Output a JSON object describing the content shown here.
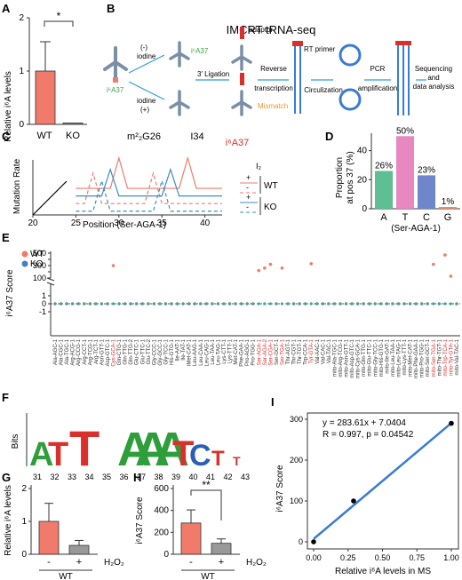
{
  "panels": {
    "A": {
      "label": "A",
      "ylabel": "Relative i⁶A levels",
      "star": "*"
    },
    "B": {
      "label": "B",
      "title": "IMCRT tRNA-seq",
      "minus": "(-)",
      "plus": "(+)",
      "iodine1": "iodine",
      "iodine2": "iodine",
      "i6a37_left": "i⁶A37",
      "i6a37_right": "i⁶A37",
      "adaptor": "adaptor",
      "rt_primer": "RT primer",
      "mismatch": "Mismatch",
      "ligation": "3′ Ligation",
      "rev1": "Reverse",
      "rev2": "transcription",
      "circ": "Circulization",
      "pcr1": "PCR",
      "pcr2": "amplification",
      "seq1": "Sequencing",
      "seq2": "and",
      "seq3": "data analysis"
    },
    "C": {
      "label": "C",
      "xlabel": "Position (Ser-AGA-1)",
      "ylabel": "Mutation Rate",
      "ann1": "m²₂G26",
      "ann2": "I34",
      "ann3": "i⁶A37",
      "legend_title": "I₂",
      "legend_plus": "+",
      "legend_minus": "-",
      "wt": "WT",
      "ko": "KO"
    },
    "D": {
      "label": "D",
      "ylabel1": "Proportion",
      "ylabel2": "at pos 37 (%)",
      "xlabel": "(Ser-AGA-1)"
    },
    "E": {
      "label": "E",
      "ylabel": "i⁶A37 Score",
      "legend_wt": "WT",
      "legend_ko": "KO"
    },
    "F": {
      "label": "F",
      "ylabel": "Bits"
    },
    "G": {
      "label": "G",
      "ylabel": "Relative i⁶A levels",
      "group": "WT",
      "h2o2": "H₂O₂"
    },
    "H": {
      "label": "H",
      "ylabel": "i⁶A37 Score",
      "group": "WT",
      "h2o2": "H₂O₂",
      "star": "**"
    },
    "I": {
      "label": "I",
      "eq": "y = 283.61x + 7.0404",
      "r": "R = 0.997, p = 0.04542",
      "xlabel": "Relative i⁶A levels in MS",
      "ylabel": "i⁶A37 Score"
    }
  },
  "colors": {
    "wt": "#f07b6b",
    "ko": "#999999",
    "blue": "#3a7bd5",
    "teal": "#2a9fd6",
    "green": "#5fbf94",
    "pink": "#e887c0",
    "slate": "#6f86c9",
    "orange": "#f08a5d"
  },
  "chart_data": [
    {
      "panel": "A",
      "type": "bar",
      "categories": [
        "WT",
        "KO"
      ],
      "values": [
        1.0,
        0.0
      ],
      "errors": [
        0.55,
        0.01
      ],
      "ylim": [
        0,
        2
      ],
      "yticks": [
        0,
        1,
        2
      ]
    },
    {
      "panel": "C",
      "type": "line",
      "xlabel": "Position (Ser-AGA-1)",
      "ylabel": "Mutation Rate",
      "xlim": [
        20,
        42
      ],
      "xticks": [
        20,
        25,
        30,
        35,
        40
      ],
      "series": [
        {
          "name": "WT +",
          "x": [
            25,
            26,
            27,
            28,
            29,
            30,
            31,
            32,
            33,
            34,
            35,
            36,
            37,
            38,
            39,
            40,
            41,
            42
          ],
          "y": [
            0.7,
            0.7,
            0.7,
            0.7,
            0.7,
            1.5,
            0.7,
            0.7,
            0.7,
            0.7,
            0.7,
            0.7,
            0.7,
            1.5,
            0.7,
            0.7,
            0.7,
            0.7
          ]
        },
        {
          "name": "WT -",
          "x": [
            25,
            26,
            27,
            28,
            29,
            30,
            31,
            32,
            33,
            34,
            35,
            36,
            37,
            38,
            39,
            40,
            41,
            42
          ],
          "y": [
            0.3,
            0.3,
            1.1,
            0.3,
            0.3,
            0.3,
            0.3,
            0.3,
            0.3,
            1.1,
            0.3,
            0.3,
            0.3,
            0.3,
            0.3,
            0.3,
            0.3,
            0.3
          ]
        },
        {
          "name": "KO +",
          "x": [
            25,
            26,
            27,
            28,
            29,
            30,
            31,
            32,
            33,
            34,
            35,
            36,
            37,
            38,
            39,
            40,
            41,
            42
          ],
          "y": [
            0.5,
            0.5,
            0.5,
            0.5,
            1.2,
            0.5,
            0.5,
            0.5,
            0.5,
            0.5,
            0.5,
            1.2,
            0.5,
            0.5,
            0.5,
            0.5,
            0.5,
            0.5
          ]
        },
        {
          "name": "KO -",
          "x": [
            25,
            26,
            27,
            28,
            29,
            30,
            31,
            32,
            33,
            34,
            35,
            36,
            37,
            38,
            39,
            40,
            41,
            42
          ],
          "y": [
            0.1,
            0.1,
            0.1,
            0.9,
            0.1,
            0.1,
            0.1,
            0.1,
            0.1,
            0.1,
            0.9,
            0.1,
            0.1,
            0.1,
            0.1,
            0.1,
            0.1,
            0.1
          ]
        }
      ]
    },
    {
      "panel": "D",
      "type": "bar",
      "categories": [
        "A",
        "T",
        "C",
        "G"
      ],
      "values": [
        26,
        50,
        23,
        1
      ],
      "labels": [
        "26%",
        "50%",
        "23%",
        "1%"
      ],
      "ylim": [
        0,
        50
      ],
      "yticks": [
        0,
        20,
        40
      ]
    },
    {
      "panel": "E",
      "type": "scatter",
      "yticks_lower": [
        "-1",
        "0",
        "1"
      ],
      "yticks_upper": [
        "100",
        "200",
        "300",
        "400",
        "500"
      ],
      "categories": [
        "Ala-AGC-1",
        "Ala-CGC-1",
        "Ala-TGC-1",
        "Arg-ACG-1",
        "Arg-CCG-1",
        "Arg-CCT-1",
        "Arg-TCG-1",
        "Arg-TCT-1",
        "Asn-GTT-1",
        "Asp-GTC-1",
        "Cys-GCA-1",
        "Gln-CTG-1",
        "Gln-TTG-1",
        "Gln-TTG-2",
        "Glu-CTC-1",
        "Glu-TTC-1",
        "Glu-TTC-2",
        "Gly-CCC-1",
        "Gly-GCC-1",
        "Gly-TCC-1",
        "His-GTG-1",
        "Ile-AAT-1",
        "Ile-TAT-1",
        "iMet-CAT-1",
        "Leu-AAG-1",
        "Leu-CAA-1",
        "Leu-CAG-1",
        "Leu-TAA-1",
        "Leu-TAG-1",
        "Lys-CTT-1",
        "Lys-TTT-1",
        "Met-CAT-1",
        "Phe-GAA-1",
        "Pro-AGG-1",
        "Pro-TGG-1",
        "Ser-AGA-1",
        "Ser-AGA-2",
        "Ser-CGA-1",
        "Ser-GCT-1",
        "Ser-TGA-1",
        "Thr-AGT-1",
        "Thr-CGT-1",
        "Thr-TGT-1",
        "Trp-CCA-1",
        "Tyr-GTA-1",
        "Val-AAC-1",
        "Val-CAC-1",
        "Val-TAC-1",
        "mito-Ala-TGC-1",
        "mito-Arg-TCG-1",
        "mito-Asn-GTT-1",
        "mito-Asp-GTC-1",
        "mito-Cys-GCA-1",
        "mito-Gln-TTG-1",
        "mito-Glu-TTC-1",
        "mito-Gly-TCC-1",
        "mito-His-GTG-1",
        "mito-Ile-GAT-1",
        "mito-Leu-TAA-1",
        "mito-Leu-TAG-1",
        "mito-Lys-TTT-1",
        "mito-Met-CAT-1",
        "mito-Phe-GAA-1",
        "mito-Pro-TGG-1",
        "mito-Ser-GCT-1",
        "mito-Ser-TGA-1",
        "mito-Thr-TGT-1",
        "mito-Trp-TCA-1",
        "mito-Tyr-GTA-1",
        "mito-Val-TAC-1"
      ],
      "highlight": [
        "Cys-GCA-1",
        "Ser-AGA-1",
        "Ser-AGA-2",
        "Ser-CGA-1",
        "Ser-TGA-1",
        "Tyr-GTA-1",
        "mito-Ser-TGA-1",
        "mito-Trp-TCA-1",
        "mito-Tyr-GTA-1"
      ],
      "wt_high": {
        "Cys-GCA-1": 300,
        "Ser-AGA-1": 220,
        "Ser-AGA-2": 260,
        "Ser-CGA-1": 320,
        "Ser-TGA-1": 260,
        "Tyr-GTA-1": 330,
        "mito-Ser-TGA-1": 320,
        "mito-Trp-TCA-1": 470,
        "mito-Tyr-GTA-1": 130
      }
    },
    {
      "panel": "F",
      "type": "sequence_logo",
      "positions": [
        "31",
        "32",
        "33",
        "34",
        "35",
        "36",
        "37",
        "38",
        "39",
        "40",
        "41",
        "42",
        "43"
      ]
    },
    {
      "panel": "G",
      "type": "bar",
      "categories": [
        "-",
        "+"
      ],
      "values": [
        1.0,
        0.27
      ],
      "errors": [
        0.55,
        0.15
      ],
      "ylim": [
        0,
        2
      ],
      "yticks": [
        0,
        1,
        2
      ]
    },
    {
      "panel": "H",
      "type": "bar",
      "categories": [
        "-",
        "+"
      ],
      "values": [
        285,
        100
      ],
      "errors": [
        120,
        40
      ],
      "ylim": [
        0,
        600
      ],
      "yticks": [
        0,
        200,
        400,
        600
      ]
    },
    {
      "panel": "I",
      "type": "scatter",
      "x": [
        0.0,
        0.29,
        1.0
      ],
      "y": [
        0,
        100,
        290
      ],
      "xlim": [
        0,
        1
      ],
      "ylim": [
        0,
        300
      ],
      "xticks": [
        "0.00",
        "0.25",
        "0.50",
        "0.75",
        "1.00"
      ],
      "yticks": [
        0,
        100,
        200,
        300
      ]
    }
  ]
}
